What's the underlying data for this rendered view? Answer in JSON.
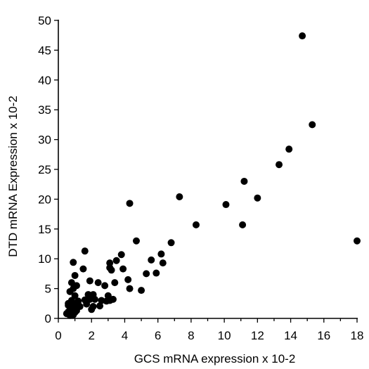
{
  "chart_data": {
    "type": "scatter",
    "title": "",
    "xlabel": "GCS mRNA expression x 10-2",
    "ylabel": "DTD mRNA Expression x 10-2",
    "xlim": [
      0,
      18
    ],
    "ylim": [
      0,
      50
    ],
    "x_ticks": [
      "0",
      "2",
      "4",
      "6",
      "8",
      "10",
      "12",
      "14",
      "16",
      "18"
    ],
    "y_ticks": [
      "0",
      "5",
      "10",
      "15",
      "20",
      "25",
      "30",
      "35",
      "40",
      "45",
      "50"
    ],
    "grid": false,
    "legend": "none",
    "point_color": "#000000",
    "series": [
      {
        "x": [
          0.5,
          0.6,
          0.7,
          0.8,
          0.9,
          1.0,
          1.1,
          0.6,
          0.8,
          1.0,
          1.2,
          0.7,
          0.9,
          1.1,
          0.8,
          1.0,
          0.9,
          0.6,
          1.0,
          0.9,
          1.3,
          1.5,
          1.6,
          1.6,
          1.7,
          1.8,
          1.9,
          1.9,
          2.0,
          2.0,
          2.1,
          2.1,
          2.2,
          2.4,
          2.5,
          2.6,
          2.8,
          2.9,
          3.0,
          3.1,
          3.1,
          3.1,
          3.2,
          3.3,
          3.4,
          3.5,
          3.8,
          3.9,
          4.2,
          4.3,
          4.3,
          4.7,
          5.0,
          5.3,
          5.6,
          5.9,
          6.2,
          6.3,
          6.8,
          7.3,
          8.3,
          10.1,
          11.1,
          11.2,
          12.0,
          13.3,
          13.9,
          14.7,
          15.3,
          18.0
        ],
        "y": [
          0.8,
          1.1,
          0.5,
          1.4,
          1.8,
          2.5,
          1.3,
          2.2,
          3.0,
          3.8,
          2.9,
          4.5,
          5.0,
          5.5,
          6.0,
          7.2,
          9.4,
          2.5,
          1.0,
          0.6,
          2.0,
          8.3,
          3.1,
          11.3,
          2.4,
          4.0,
          3.2,
          6.3,
          1.5,
          3.6,
          2.0,
          4.0,
          3.2,
          6.0,
          2.1,
          3.0,
          5.5,
          2.9,
          3.8,
          8.5,
          9.3,
          3.0,
          8.1,
          3.2,
          6.0,
          9.7,
          10.7,
          8.3,
          6.5,
          5.0,
          19.3,
          13.0,
          4.7,
          7.5,
          9.8,
          7.6,
          10.8,
          9.3,
          12.7,
          20.4,
          15.7,
          19.1,
          15.7,
          23.0,
          20.2,
          25.8,
          28.4,
          47.4,
          32.5,
          13.0
        ]
      }
    ]
  }
}
